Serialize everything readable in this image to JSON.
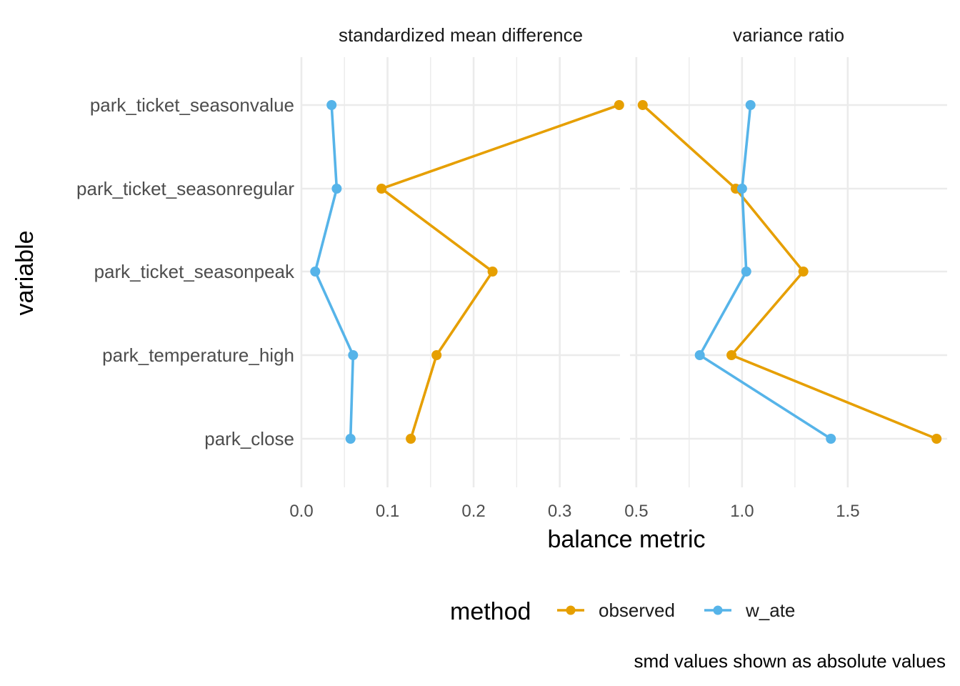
{
  "chart_data": {
    "type": "line",
    "ylabel": "variable",
    "xlabel": "balance metric",
    "caption": "smd values shown as absolute values",
    "variables": [
      "park_ticket_seasonvalue",
      "park_ticket_seasonregular",
      "park_ticket_seasonpeak",
      "park_temperature_high",
      "park_close"
    ],
    "legend": {
      "title": "method",
      "position": "bottom",
      "entries": [
        {
          "name": "observed",
          "color": "#E69F00"
        },
        {
          "name": "w_ate",
          "color": "#56B4E9"
        }
      ]
    },
    "panels": [
      {
        "title": "standardized mean difference",
        "xlim": [
          0.0,
          0.37
        ],
        "xticks": [
          0.0,
          0.1,
          0.2,
          0.3
        ],
        "xtick_labels": [
          "0.0",
          "0.1",
          "0.2",
          "0.3"
        ],
        "series": [
          {
            "name": "observed",
            "values": [
              0.369,
              0.093,
              0.222,
              0.157,
              0.127
            ]
          },
          {
            "name": "w_ate",
            "values": [
              0.035,
              0.041,
              0.016,
              0.06,
              0.057
            ]
          }
        ]
      },
      {
        "title": "variance ratio",
        "xlim": [
          0.47,
          1.97
        ],
        "xticks": [
          0.5,
          1.0,
          1.5
        ],
        "xtick_labels": [
          "0.5",
          "1.0",
          "1.5"
        ],
        "series": [
          {
            "name": "observed",
            "values": [
              0.53,
              0.97,
              1.29,
              0.95,
              1.92
            ]
          },
          {
            "name": "w_ate",
            "values": [
              1.04,
              1.0,
              1.02,
              0.8,
              1.42
            ]
          }
        ]
      }
    ]
  }
}
